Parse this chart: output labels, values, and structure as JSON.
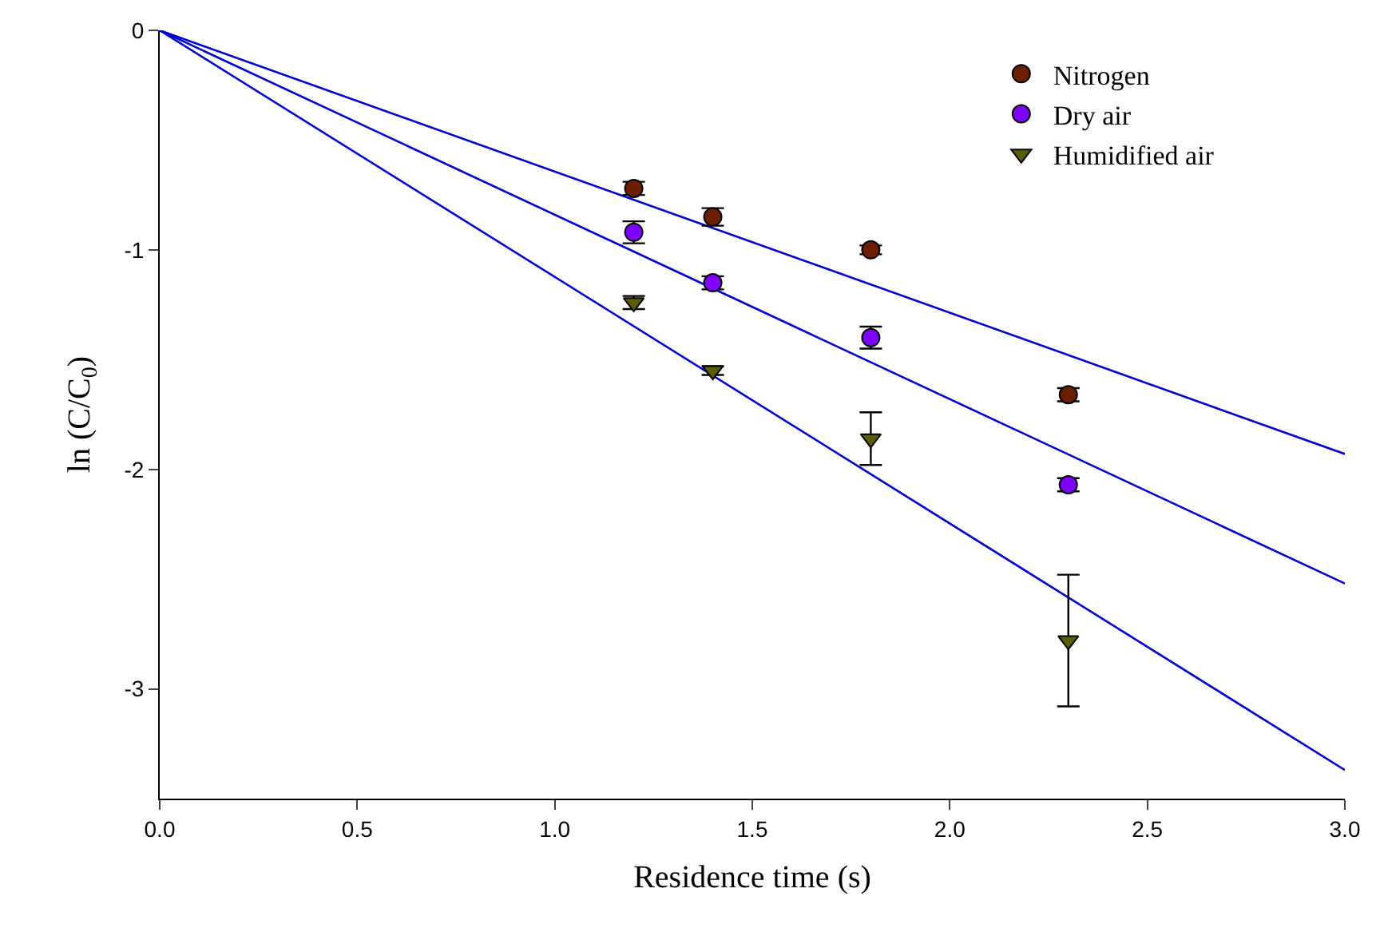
{
  "chart_data": {
    "type": "scatter",
    "xlabel": "Residence time (s)",
    "ylabel": "ln (C/C$_{0}$)",
    "xlim": [
      0,
      3
    ],
    "ylim": [
      -3.5,
      0
    ],
    "xticks": [
      {
        "value": 0,
        "label": "0.0"
      },
      {
        "value": 0.5,
        "label": "0.5"
      },
      {
        "value": 1,
        "label": "1.0"
      },
      {
        "value": 1.5,
        "label": "1.5"
      },
      {
        "value": 2,
        "label": "2.0"
      },
      {
        "value": 2.5,
        "label": "2.5"
      },
      {
        "value": 3,
        "label": "3.0"
      }
    ],
    "yticks": [
      0,
      -1,
      -2,
      -3
    ],
    "legend": "top right",
    "series": [
      {
        "type": "line",
        "color": "#0000cc",
        "marker": "none",
        "x": [
          0,
          3
        ],
        "values": [
          0,
          -1.93
        ]
      },
      {
        "type": "line",
        "color": "#0000cc",
        "marker": "none",
        "x": [
          0,
          3
        ],
        "values": [
          0,
          -2.52
        ]
      },
      {
        "type": "line",
        "color": "#0000cc",
        "marker": "none",
        "x": [
          0,
          3
        ],
        "values": [
          0,
          -3.37
        ]
      },
      {
        "name": "Nitrogen",
        "color": "#6b1e00",
        "marker": "circle",
        "x": [
          1.2,
          1.4,
          1.8,
          2.3
        ],
        "values": [
          -0.72,
          -0.85,
          -1.0,
          -1.66
        ],
        "errors": [
          0.03,
          0.04,
          0.02,
          0.03
        ]
      },
      {
        "name": "Dry air",
        "color": "#8000ff",
        "marker": "circle",
        "x": [
          1.2,
          1.4,
          1.8,
          2.3
        ],
        "values": [
          -0.92,
          -1.15,
          -1.4,
          -2.07
        ],
        "errors": [
          0.05,
          0.03,
          0.05,
          0.03
        ]
      },
      {
        "name": "Humidified air",
        "color": "#5c5c00",
        "marker": "triangle",
        "x": [
          1.2,
          1.4,
          1.8,
          2.3
        ],
        "values": [
          -1.24,
          -1.55,
          -1.86,
          -2.78
        ],
        "errors": [
          0.03,
          0.02,
          0.12,
          0.3
        ]
      }
    ]
  }
}
